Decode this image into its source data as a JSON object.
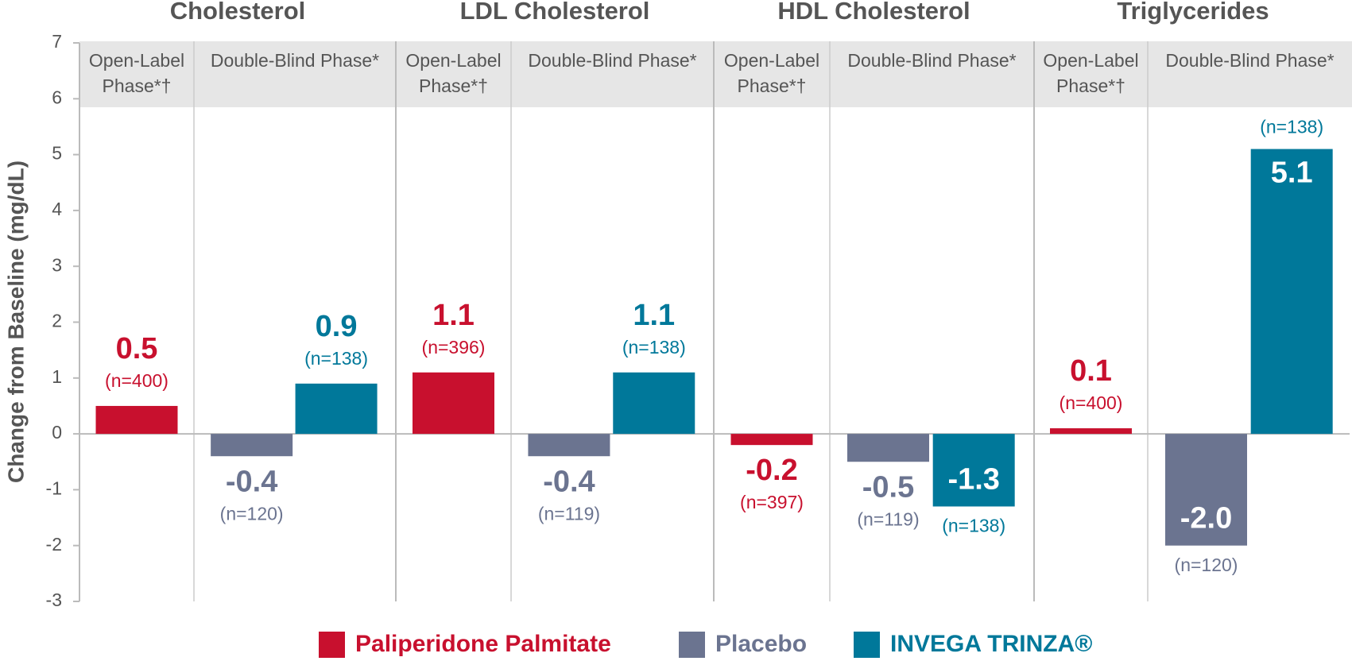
{
  "chart_data": {
    "type": "bar",
    "ylabel": "Change from Baseline (mg/dL)",
    "ylim": [
      -3,
      7
    ],
    "yticks": [
      -3,
      -2,
      -1,
      0,
      1,
      2,
      3,
      4,
      5,
      6,
      7
    ],
    "categories": [
      "Cholesterol",
      "LDL Cholesterol",
      "HDL Cholesterol",
      "Triglycerides"
    ],
    "phases": [
      "Open-Label Phase*†",
      "Double-Blind Phase*"
    ],
    "series": [
      {
        "name": "Paliperidone Palmitate",
        "color": "#c8102e",
        "values": [
          0.5,
          1.1,
          -0.2,
          0.1
        ],
        "value_labels": [
          "0.5",
          "1.1",
          "-0.2",
          "0.1"
        ],
        "n_labels": [
          "(n=400)",
          "(n=396)",
          "(n=397)",
          "(n=400)"
        ]
      },
      {
        "name": "Placebo",
        "color": "#6b7490",
        "values": [
          -0.4,
          -0.4,
          -0.5,
          -2.0
        ],
        "value_labels": [
          "-0.4",
          "-0.4",
          "-0.5",
          "-2.0"
        ],
        "n_labels": [
          "(n=120)",
          "(n=119)",
          "(n=119)",
          "(n=120)"
        ]
      },
      {
        "name": "INVEGA TRINZA®",
        "color": "#00789a",
        "values": [
          0.9,
          1.1,
          -1.3,
          5.1
        ],
        "value_labels": [
          "0.9",
          "1.1",
          "-1.3",
          "5.1"
        ],
        "n_labels": [
          "(n=138)",
          "(n=138)",
          "(n=138)",
          "(n=138)"
        ]
      }
    ]
  }
}
